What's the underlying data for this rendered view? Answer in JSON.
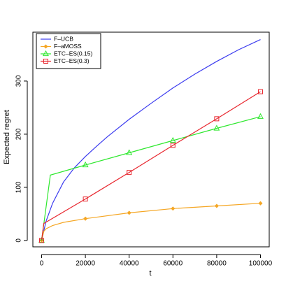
{
  "chart_data": {
    "type": "line",
    "title": "",
    "xlabel": "t",
    "ylabel": "Expected regret",
    "xlim": [
      -4000,
      104000
    ],
    "ylim": [
      -12,
      392
    ],
    "x_ticks": [
      0,
      20000,
      40000,
      60000,
      80000,
      100000
    ],
    "x_tick_labels": [
      "0",
      "20000",
      "40000",
      "60000",
      "80000",
      "100000"
    ],
    "y_ticks": [
      0,
      100,
      200,
      300
    ],
    "y_tick_labels": [
      "0",
      "100",
      "200",
      "300"
    ],
    "grid": false,
    "legend_position": "top-left",
    "series": [
      {
        "name": "F–UCB",
        "color": "#3b3bef",
        "marker": "none",
        "x": [
          0,
          2000,
          5000,
          10000,
          15000,
          20000,
          25000,
          30000,
          40000,
          50000,
          60000,
          70000,
          80000,
          90000,
          100000
        ],
        "y": [
          0,
          36,
          70,
          110,
          137,
          158,
          177,
          195,
          228,
          258,
          287,
          313,
          337,
          359,
          378
        ],
        "marker_x": []
      },
      {
        "name": "F–aMOSS",
        "color": "#f5a623",
        "marker": "diamond",
        "x": [
          0,
          1000,
          2000,
          5000,
          10000,
          20000,
          40000,
          60000,
          80000,
          100000
        ],
        "y": [
          0,
          17,
          22,
          28,
          34,
          41,
          52,
          60,
          65,
          70
        ],
        "marker_x": [
          0,
          20000,
          40000,
          60000,
          80000,
          100000
        ]
      },
      {
        "name": "ETC–ES(0.15)",
        "color": "#2ee82e",
        "marker": "triangle",
        "x": [
          0,
          4000,
          20000,
          40000,
          60000,
          80000,
          100000
        ],
        "y": [
          0,
          123,
          142,
          165,
          188,
          211,
          233
        ],
        "marker_x": [
          0,
          20000,
          40000,
          60000,
          80000,
          100000
        ]
      },
      {
        "name": "ETC–ES(0.3)",
        "color": "#e8262e",
        "marker": "square",
        "x": [
          0,
          1000,
          20000,
          40000,
          60000,
          80000,
          100000
        ],
        "y": [
          0,
          32,
          78,
          128,
          179,
          229,
          280
        ],
        "marker_x": [
          0,
          20000,
          40000,
          60000,
          80000,
          100000
        ]
      }
    ]
  }
}
